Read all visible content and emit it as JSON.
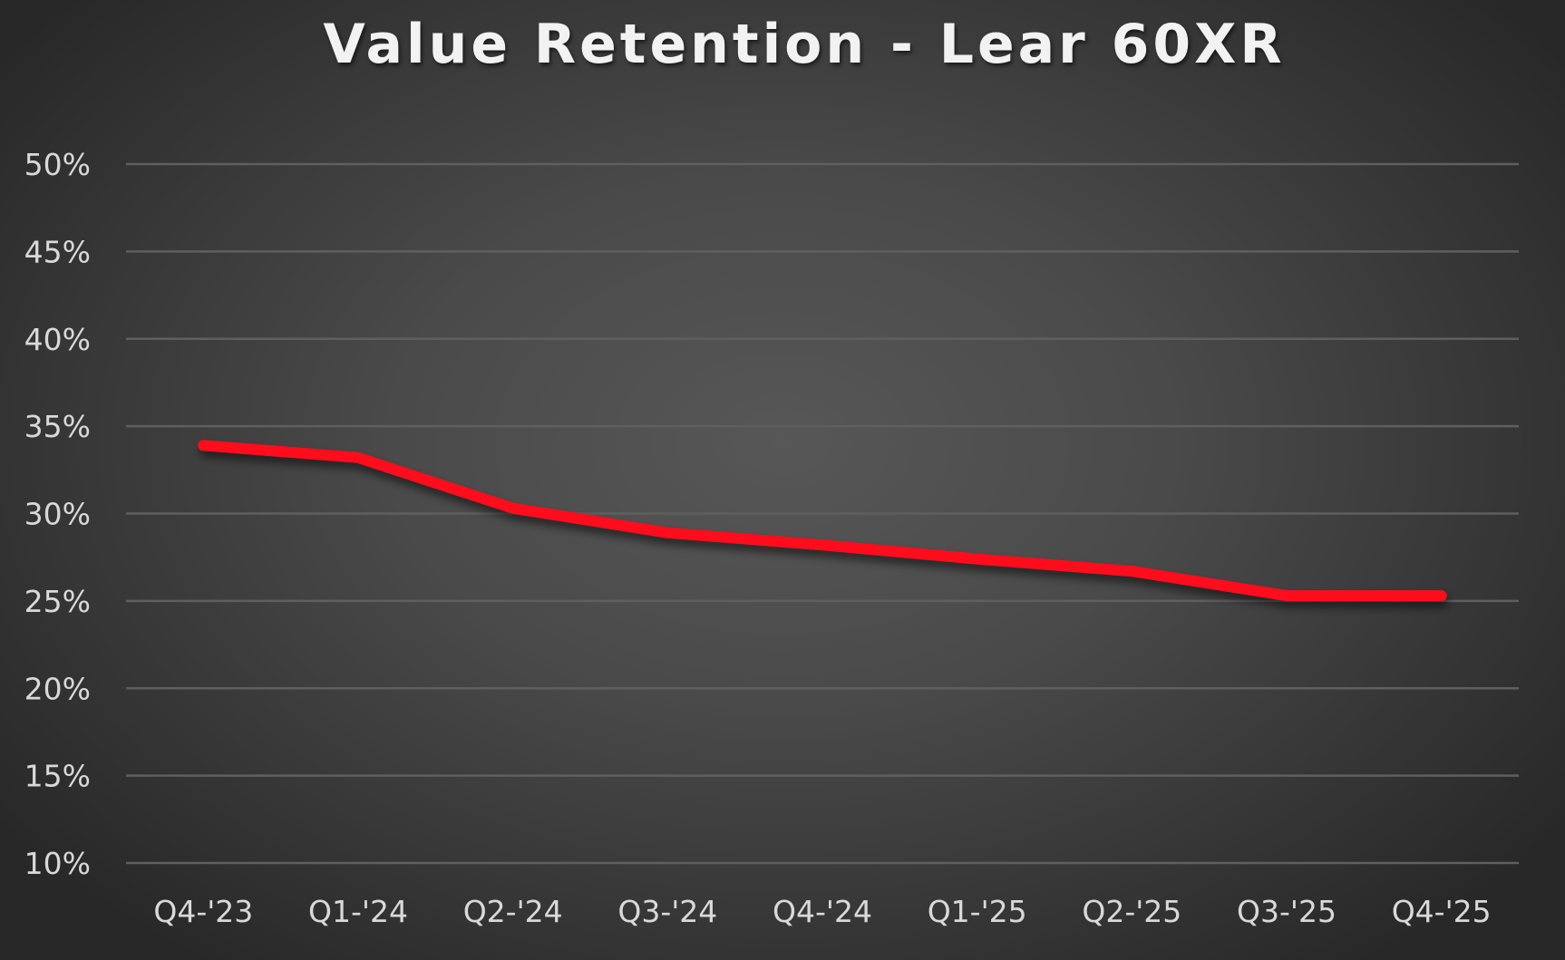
{
  "chart_data": {
    "type": "line",
    "title": "Value Retention - Lear 60XR",
    "xlabel": "",
    "ylabel": "",
    "categories": [
      "Q4-'23",
      "Q1-'24",
      "Q2-'24",
      "Q3-'24",
      "Q4-'24",
      "Q1-'25",
      "Q2-'25",
      "Q3-'25",
      "Q4-'25"
    ],
    "series": [
      {
        "name": "Lear 60XR",
        "color": "#FF0A1A",
        "values": [
          33.9,
          33.2,
          30.3,
          28.9,
          28.2,
          27.4,
          26.7,
          25.3,
          25.3
        ]
      }
    ],
    "ylim": [
      10,
      50
    ],
    "yticks": [
      "10%",
      "15%",
      "20%",
      "25%",
      "30%",
      "35%",
      "40%",
      "45%",
      "50%"
    ],
    "ytick_values": [
      10,
      15,
      20,
      25,
      30,
      35,
      40,
      45,
      50
    ],
    "grid": true,
    "legend": "none",
    "background": "#4a4a4a",
    "gridline_color": "#5f5f5f"
  }
}
